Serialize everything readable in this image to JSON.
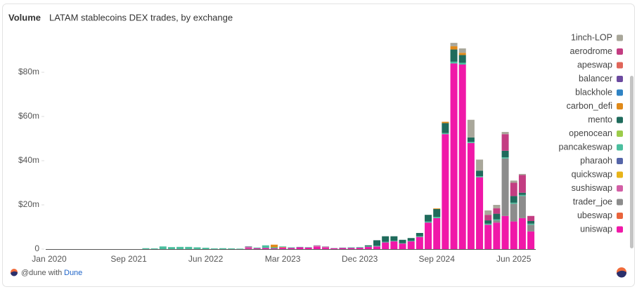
{
  "chart_data": {
    "type": "stacked-bar",
    "title": "Volume",
    "subtitle": "LATAM stablecoins DEX trades, by exchange",
    "x_start_label": "Jan 2020",
    "categories": [
      "Sep 2021",
      null,
      null,
      null,
      null,
      null,
      null,
      null,
      null,
      "Jun 2022",
      null,
      null,
      null,
      null,
      null,
      null,
      null,
      null,
      "Mar 2023",
      null,
      null,
      null,
      null,
      null,
      null,
      null,
      null,
      "Dec 2023",
      null,
      null,
      null,
      null,
      null,
      null,
      null,
      null,
      "Sep 2024",
      null,
      null,
      null,
      null,
      null,
      null,
      null,
      null,
      "Jun 2025",
      null,
      null
    ],
    "ylim": [
      0,
      100
    ],
    "yticks": [
      0,
      {
        "value": 20,
        "label": "$20m"
      },
      {
        "value": 40,
        "label": "$40m"
      },
      {
        "value": 60,
        "label": "$60m"
      },
      {
        "value": 80,
        "label": "$80m"
      }
    ],
    "grid": false,
    "legend": "right",
    "series": [
      {
        "name": "1inch-LOP",
        "color": "#a9a79a",
        "values": [
          0,
          0,
          0,
          0,
          0,
          0,
          0,
          0,
          0,
          0,
          0,
          0,
          0,
          0,
          0,
          0,
          0,
          0,
          0,
          0,
          0,
          0,
          0,
          0,
          0,
          0,
          0,
          0,
          0,
          0,
          0,
          0,
          0,
          0,
          0,
          0,
          0,
          0,
          1.5,
          2,
          8,
          5,
          2,
          1.5,
          1,
          1,
          0.5,
          0
        ]
      },
      {
        "name": "aerodrome",
        "color": "#c33d82",
        "values": [
          0,
          0,
          0,
          0,
          0,
          0,
          0,
          0,
          0,
          0,
          0,
          0,
          0,
          0,
          0,
          0,
          0,
          0,
          0,
          0,
          0,
          0,
          0,
          0,
          0,
          0,
          0,
          0,
          0,
          0,
          0,
          0,
          0,
          0,
          0,
          0,
          0,
          0,
          0,
          0,
          0,
          0,
          2.5,
          2.5,
          7.5,
          6,
          8,
          2.3
        ]
      },
      {
        "name": "apeswap",
        "color": "#e0665a",
        "values": [
          0,
          0,
          0,
          0,
          0,
          0,
          0,
          0,
          0,
          0,
          0,
          0,
          0,
          0,
          0,
          0,
          0,
          0,
          0,
          0,
          0,
          0,
          0,
          0,
          0,
          0,
          0,
          0,
          0,
          0,
          0,
          0,
          0,
          0,
          0,
          0,
          0,
          0,
          0,
          0,
          0,
          0,
          0,
          0,
          0,
          0,
          0,
          0
        ]
      },
      {
        "name": "balancer",
        "color": "#6c4aa0",
        "values": [
          0,
          0,
          0,
          0,
          0,
          0,
          0,
          0,
          0,
          0,
          0,
          0,
          0,
          0,
          0,
          0,
          0,
          0,
          0,
          0,
          0,
          0,
          0,
          0,
          0,
          0,
          0,
          0,
          0,
          0,
          0,
          0,
          0,
          0,
          0,
          0,
          0,
          0,
          0,
          0,
          0,
          0,
          0,
          0,
          0,
          0,
          0,
          0
        ]
      },
      {
        "name": "blackhole",
        "color": "#2f83c4",
        "values": [
          0,
          0,
          0,
          0,
          0,
          0,
          0,
          0,
          0,
          0,
          0,
          0,
          0,
          0,
          0,
          0,
          0,
          0,
          0,
          0,
          0,
          0,
          0,
          0,
          0,
          0,
          0,
          0,
          0,
          0,
          0,
          0,
          0,
          0,
          0,
          0,
          0,
          0,
          0,
          0,
          0,
          0,
          0,
          0,
          0,
          0,
          0,
          0
        ]
      },
      {
        "name": "carbon_defi",
        "color": "#e08a1a",
        "values": [
          0,
          0,
          0,
          0,
          0,
          0,
          0,
          0,
          0,
          0,
          0,
          0,
          0,
          0,
          0,
          0,
          0,
          1.2,
          0,
          0,
          0,
          0,
          0,
          0,
          0,
          0,
          0,
          0,
          0,
          0,
          0,
          0,
          0,
          0,
          0,
          0,
          0.3,
          0.6,
          1.5,
          1,
          0,
          0,
          0,
          0,
          0,
          0,
          0,
          0
        ]
      },
      {
        "name": "mento",
        "color": "#1f6b5c",
        "values": [
          0,
          0,
          0,
          0,
          0,
          0,
          0,
          0,
          0,
          0,
          0,
          0,
          0,
          0,
          0,
          0,
          0,
          0,
          0,
          0,
          0,
          0,
          0,
          0,
          0,
          0,
          0,
          0,
          0.5,
          2.5,
          2.5,
          2,
          1.5,
          1.2,
          1.5,
          3,
          3.5,
          4.5,
          5.5,
          3.5,
          2,
          2.5,
          1.5,
          2.5,
          3,
          3,
          1,
          1.2
        ]
      },
      {
        "name": "openocean",
        "color": "#9ccc4a",
        "values": [
          0,
          0,
          0,
          0,
          0,
          0,
          0,
          0,
          0,
          0,
          0,
          0,
          0,
          0,
          0,
          0,
          0,
          0,
          0,
          0,
          0,
          0,
          0,
          0,
          0,
          0,
          0,
          0,
          0,
          0,
          0,
          0,
          0,
          0,
          0,
          0,
          0,
          0,
          0,
          0,
          0,
          0,
          0,
          0,
          0,
          0,
          0,
          0
        ]
      },
      {
        "name": "pancakeswap",
        "color": "#4bbf9f",
        "values": [
          0,
          0,
          0.4,
          0.3,
          1.2,
          0.9,
          1,
          1,
          0.8,
          0.6,
          0.3,
          0.4,
          0.3,
          0.2,
          0.2,
          0.3,
          1.2,
          0.5,
          0.3,
          0.3,
          0.2,
          0.2,
          0.1,
          0.1,
          0.1,
          0.2,
          0.3,
          0.3,
          0.2,
          0.3,
          0.3,
          0.3,
          0.2,
          0.3,
          0.3,
          0.5,
          0.6,
          0.5,
          0.8,
          0.8,
          0.5,
          0.5,
          0.5,
          0.5,
          0.5,
          0.5,
          0.5,
          0.5
        ]
      },
      {
        "name": "pharaoh",
        "color": "#5565a8",
        "values": [
          0,
          0,
          0,
          0,
          0,
          0,
          0,
          0,
          0,
          0,
          0,
          0,
          0,
          0,
          0,
          0,
          0,
          0,
          0,
          0,
          0,
          0,
          0,
          0,
          0,
          0,
          0,
          0,
          0,
          0,
          0,
          0,
          0,
          0,
          0,
          0,
          0,
          0,
          0,
          0,
          0,
          0,
          0,
          0,
          0,
          0,
          0,
          0
        ]
      },
      {
        "name": "quickswap",
        "color": "#e8b41a",
        "values": [
          0,
          0,
          0,
          0,
          0,
          0,
          0,
          0,
          0,
          0,
          0,
          0,
          0,
          0,
          0,
          0,
          0,
          0,
          0,
          0,
          0,
          0,
          0,
          0,
          0,
          0,
          0,
          0,
          0,
          0,
          0,
          0,
          0,
          0,
          0,
          0,
          0,
          0,
          0,
          0,
          0,
          0,
          0,
          0,
          0,
          0,
          0,
          0
        ]
      },
      {
        "name": "sushiswap",
        "color": "#d35fa6",
        "values": [
          0,
          0,
          0,
          0,
          0,
          0,
          0,
          0,
          0,
          0,
          0,
          0,
          0,
          0,
          0.8,
          0,
          0,
          0,
          0,
          0,
          0,
          0,
          0.6,
          0.5,
          0,
          0,
          0,
          0,
          0,
          0,
          0,
          0,
          0,
          0,
          0,
          0,
          0,
          0,
          0,
          0,
          0,
          0,
          0,
          0,
          0,
          0,
          0,
          0
        ]
      },
      {
        "name": "trader_joe",
        "color": "#8c8c8c",
        "values": [
          0,
          0,
          0,
          0,
          0,
          0,
          0,
          0,
          0,
          0,
          0,
          0,
          0,
          0,
          0,
          0,
          0,
          0,
          0,
          0,
          0,
          0,
          0,
          0,
          0,
          0,
          0,
          0,
          0,
          0,
          0,
          0,
          0,
          0,
          0,
          0,
          0,
          0,
          0,
          0,
          0,
          0,
          0,
          1,
          26,
          8,
          10,
          3
        ]
      },
      {
        "name": "ubeswap",
        "color": "#e9643c",
        "values": [
          0,
          0,
          0,
          0,
          0,
          0,
          0,
          0,
          0,
          0,
          0,
          0,
          0,
          0,
          0,
          0,
          0,
          0,
          0.3,
          0,
          0,
          0,
          0,
          0,
          0,
          0,
          0,
          0,
          0,
          0,
          0,
          0,
          0,
          0,
          0,
          0,
          0,
          0,
          0,
          0,
          0,
          0,
          0,
          0,
          0,
          0,
          0,
          0
        ]
      },
      {
        "name": "uniswap",
        "color": "#f018a8",
        "values": [
          0,
          0,
          0,
          0,
          0,
          0,
          0,
          0,
          0,
          0,
          0,
          0,
          0,
          0,
          0.3,
          0.4,
          0.5,
          0.3,
          0.6,
          0.5,
          0.8,
          0.7,
          1,
          0.6,
          0.4,
          0.5,
          0.5,
          0.6,
          1,
          1.2,
          3,
          3.5,
          2.5,
          3.5,
          5.5,
          12,
          14,
          52,
          84,
          83.5,
          48,
          32.5,
          11,
          12,
          15,
          12.5,
          14,
          8
        ]
      }
    ]
  },
  "footer": {
    "text": "@dune with",
    "link": "Dune"
  }
}
